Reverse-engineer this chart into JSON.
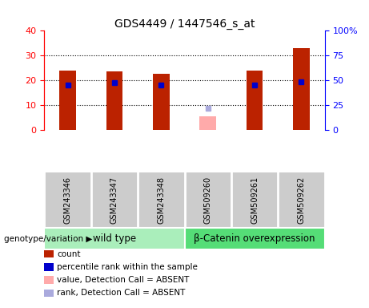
{
  "title": "GDS4449 / 1447546_s_at",
  "categories": [
    "GSM243346",
    "GSM243347",
    "GSM243348",
    "GSM509260",
    "GSM509261",
    "GSM509262"
  ],
  "count_values": [
    24.0,
    23.5,
    22.5,
    0,
    23.8,
    33.0
  ],
  "rank_values": [
    18.0,
    19.0,
    18.0,
    0,
    18.0,
    19.5
  ],
  "absent_value": [
    0,
    0,
    0,
    5.5,
    0,
    0
  ],
  "absent_rank": [
    0,
    0,
    0,
    8.8,
    0,
    0
  ],
  "is_absent": [
    false,
    false,
    false,
    true,
    false,
    false
  ],
  "count_color": "#bb2200",
  "rank_color": "#0000cc",
  "absent_value_color": "#ffaaaa",
  "absent_rank_color": "#aaaadd",
  "left_ylim": [
    0,
    40
  ],
  "right_ylim": [
    0,
    100
  ],
  "left_yticks": [
    0,
    10,
    20,
    30,
    40
  ],
  "right_yticks": [
    0,
    25,
    50,
    75,
    100
  ],
  "right_yticklabels": [
    "0",
    "25",
    "50",
    "75",
    "100%"
  ],
  "group1_label": "wild type",
  "group2_label": "β-Catenin overexpression",
  "group1_color": "#aaeebb",
  "group2_color": "#55dd77",
  "genotype_label": "genotype/variation",
  "bar_width": 0.35,
  "label_bg_color": "#cccccc",
  "plot_bg_color": "#ffffff",
  "grid_color": "#000000",
  "legend_items": [
    {
      "color": "#bb2200",
      "label": "count"
    },
    {
      "color": "#0000cc",
      "label": "percentile rank within the sample"
    },
    {
      "color": "#ffaaaa",
      "label": "value, Detection Call = ABSENT"
    },
    {
      "color": "#aaaadd",
      "label": "rank, Detection Call = ABSENT"
    }
  ]
}
